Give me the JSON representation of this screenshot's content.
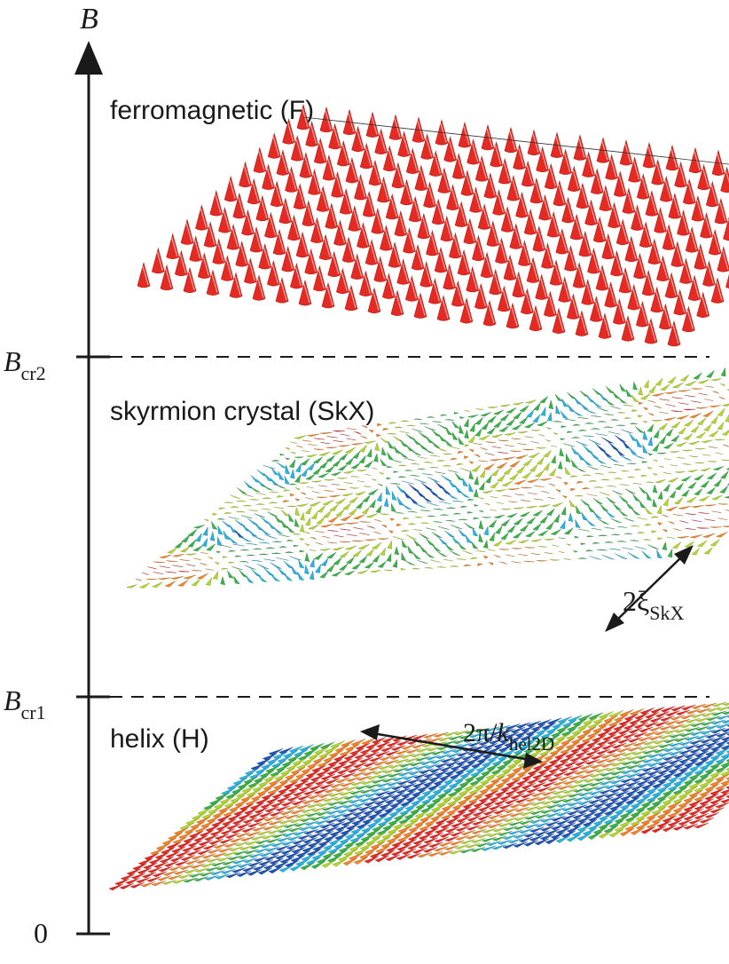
{
  "axis": {
    "label": "B",
    "zero_label": "0",
    "thresholds": [
      {
        "name": "B",
        "sub": "cr2"
      },
      {
        "name": "B",
        "sub": "cr1"
      }
    ]
  },
  "phases": [
    {
      "label": "ferromagnetic (F)",
      "color": "#e52a23"
    },
    {
      "label": "skyrmion crystal (SkX)"
    },
    {
      "label": "helix (H)"
    }
  ],
  "annotations": {
    "skx_length": {
      "prefix": "2",
      "symbol": "ξ",
      "sub": "SkX"
    },
    "helix_length": {
      "prefix": "2π/",
      "italic": "k",
      "sub": "hel2D"
    }
  },
  "colors": {
    "red": "#e52a23",
    "orange": "#f2852b",
    "yellow_green": "#b4d632",
    "green": "#3bb34a",
    "cyan": "#2bb3e0",
    "blue": "#1e55b6",
    "axis": "#1a1a1a"
  }
}
